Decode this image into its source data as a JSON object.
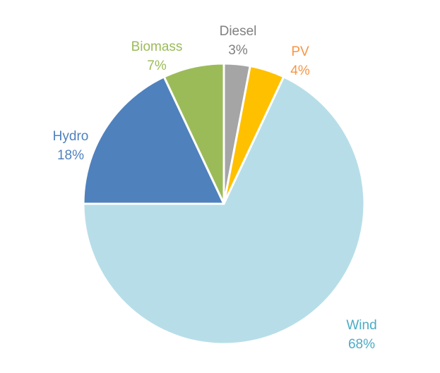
{
  "chart_data": {
    "type": "pie",
    "start": "top",
    "direction": "clockwise",
    "slices": [
      {
        "label": "Diesel",
        "value": 3,
        "value_label": "3%",
        "color": "#A5A5A5",
        "label_color": "#808080"
      },
      {
        "label": "PV",
        "value": 4,
        "value_label": "4%",
        "color": "#FFC000",
        "label_color": "#F79646"
      },
      {
        "label": "Wind",
        "value": 68,
        "value_label": "68%",
        "color": "#B7DEE8",
        "label_color": "#4BACC6"
      },
      {
        "label": "Hydro",
        "value": 18,
        "value_label": "18%",
        "color": "#4F81BD",
        "label_color": "#4F81BD"
      },
      {
        "label": "Biomass",
        "value": 7,
        "value_label": "7%",
        "color": "#9BBB59",
        "label_color": "#9BBB59"
      }
    ]
  }
}
